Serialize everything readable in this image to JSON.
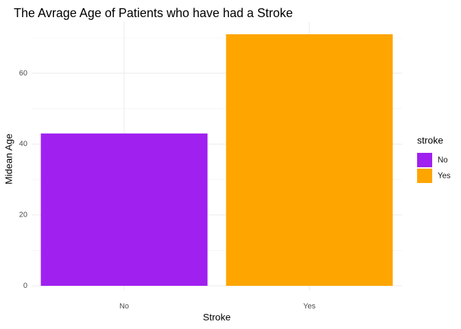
{
  "chart_data": {
    "type": "bar",
    "title": "The Avrage Age of Patients who have had a Stroke",
    "xlabel": "Stroke",
    "ylabel": "Midean Age",
    "categories": [
      "No",
      "Yes"
    ],
    "values": [
      43,
      71
    ],
    "colors": [
      "#A020F0",
      "#FFA500"
    ],
    "ylim": [
      0,
      71
    ],
    "yticks": [
      0,
      20,
      40,
      60
    ],
    "grid": true,
    "legend": {
      "title": "stroke",
      "placement": "right",
      "entries": [
        "No",
        "Yes"
      ]
    }
  }
}
